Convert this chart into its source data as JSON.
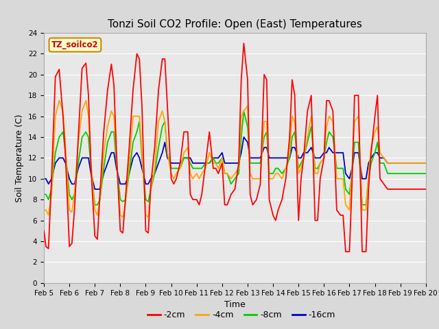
{
  "title": "Tonzi Soil CO2 Profile: Open (East) Temperatures",
  "xlabel": "Time",
  "ylabel": "Soil Temperature (C)",
  "legend_label": "TZ_soilco2",
  "ylim": [
    0,
    24
  ],
  "yticks": [
    0,
    2,
    4,
    6,
    8,
    10,
    12,
    14,
    16,
    18,
    20,
    22,
    24
  ],
  "xtick_labels": [
    "Feb 5",
    "Feb 6",
    "Feb 7",
    "Feb 8",
    "Feb 9",
    "Feb 10",
    "Feb 11",
    "Feb 12",
    "Feb 13",
    "Feb 14",
    "Feb 15",
    "Feb 16",
    "Feb 17",
    "Feb 18",
    "Feb 19",
    "Feb 20"
  ],
  "series": {
    "-2cm": {
      "color": "#ff0000"
    },
    "-4cm": {
      "color": "#ffa500"
    },
    "-8cm": {
      "color": "#00cc00"
    },
    "-16cm": {
      "color": "#0000cc"
    }
  },
  "background_color": "#d9d9d9",
  "plot_bg": "#e8e8e8",
  "title_fontsize": 11,
  "axis_label_fontsize": 9,
  "tick_fontsize": 7.5,
  "legend_fontsize": 9,
  "line_width": 1.3,
  "x_2cm": [
    0,
    0.08,
    0.18,
    0.3,
    0.45,
    0.6,
    0.75,
    0.85,
    1.0,
    1.1,
    1.2,
    1.35,
    1.5,
    1.65,
    1.75,
    1.85,
    2.0,
    2.1,
    2.2,
    2.35,
    2.5,
    2.65,
    2.75,
    2.85,
    3.0,
    3.1,
    3.2,
    3.35,
    3.5,
    3.65,
    3.75,
    3.85,
    4.0,
    4.1,
    4.2,
    4.35,
    4.5,
    4.65,
    4.75,
    4.85,
    5.0,
    5.1,
    5.2,
    5.35,
    5.5,
    5.65,
    5.75,
    5.85,
    6.0,
    6.1,
    6.2,
    6.35,
    6.5,
    6.65,
    6.75,
    6.85,
    7.0,
    7.1,
    7.2,
    7.35,
    7.5,
    7.65,
    7.75,
    7.85,
    8.0,
    8.1,
    8.2,
    8.35,
    8.5,
    8.65,
    8.75,
    8.85,
    9.0,
    9.1,
    9.2,
    9.35,
    9.5,
    9.65,
    9.75,
    9.85,
    10.0,
    10.1,
    10.2,
    10.35,
    10.5,
    10.65,
    10.75,
    10.85,
    11.0,
    11.1,
    11.2,
    11.35,
    11.5,
    11.65,
    11.75,
    11.85,
    12.0,
    12.1,
    12.2,
    12.35,
    12.5,
    12.65,
    12.75,
    12.85,
    13.0,
    13.1,
    13.2,
    13.35,
    13.5,
    13.65,
    13.75,
    13.85,
    14.0,
    14.1,
    14.2,
    14.35,
    14.5,
    14.65,
    14.75,
    14.85,
    15.0
  ],
  "y_2cm": [
    5.0,
    3.5,
    3.3,
    10.0,
    19.8,
    20.5,
    16.0,
    12.0,
    3.5,
    3.8,
    7.0,
    14.0,
    20.6,
    21.1,
    18.0,
    11.0,
    4.5,
    4.2,
    8.5,
    14.5,
    18.5,
    21.0,
    19.0,
    12.5,
    5.0,
    4.8,
    8.0,
    13.0,
    18.5,
    22.0,
    21.5,
    17.0,
    5.0,
    4.8,
    9.5,
    13.0,
    18.5,
    21.5,
    21.5,
    17.0,
    10.0,
    9.5,
    10.0,
    11.5,
    14.5,
    14.5,
    8.5,
    8.0,
    8.0,
    7.5,
    8.5,
    11.5,
    14.5,
    11.0,
    11.0,
    10.5,
    11.5,
    7.5,
    7.5,
    8.5,
    9.0,
    11.5,
    19.5,
    23.0,
    19.5,
    8.5,
    7.5,
    8.0,
    9.5,
    20.0,
    19.5,
    8.0,
    6.5,
    6.0,
    7.0,
    8.0,
    10.0,
    14.0,
    19.5,
    18.0,
    6.0,
    10.0,
    12.0,
    16.5,
    18.0,
    6.0,
    6.0,
    10.0,
    12.0,
    17.5,
    17.5,
    16.5,
    7.0,
    6.5,
    6.5,
    3.0,
    3.0,
    9.5,
    18.0,
    18.0,
    3.0,
    3.0,
    9.0,
    12.5,
    16.0,
    18.0,
    10.0,
    9.5,
    9.0,
    9.0,
    9.0,
    9.0,
    9.0,
    9.0,
    9.0,
    9.0,
    9.0,
    9.0,
    9.0,
    9.0,
    9.0
  ],
  "x_4cm": [
    0,
    0.08,
    0.18,
    0.3,
    0.45,
    0.6,
    0.75,
    0.85,
    1.0,
    1.1,
    1.2,
    1.35,
    1.5,
    1.65,
    1.75,
    1.85,
    2.0,
    2.1,
    2.2,
    2.35,
    2.5,
    2.65,
    2.75,
    2.85,
    3.0,
    3.1,
    3.2,
    3.35,
    3.5,
    3.65,
    3.75,
    3.85,
    4.0,
    4.1,
    4.2,
    4.35,
    4.5,
    4.65,
    4.75,
    4.85,
    5.0,
    5.1,
    5.2,
    5.35,
    5.5,
    5.65,
    5.75,
    5.85,
    6.0,
    6.1,
    6.2,
    6.35,
    6.5,
    6.65,
    6.75,
    6.85,
    7.0,
    7.1,
    7.2,
    7.35,
    7.5,
    7.65,
    7.75,
    7.85,
    8.0,
    8.1,
    8.2,
    8.35,
    8.5,
    8.65,
    8.75,
    8.85,
    9.0,
    9.1,
    9.2,
    9.35,
    9.5,
    9.65,
    9.75,
    9.85,
    10.0,
    10.1,
    10.2,
    10.35,
    10.5,
    10.65,
    10.75,
    10.85,
    11.0,
    11.1,
    11.2,
    11.35,
    11.5,
    11.65,
    11.75,
    11.85,
    12.0,
    12.1,
    12.2,
    12.35,
    12.5,
    12.65,
    12.75,
    12.85,
    13.0,
    13.1,
    13.2,
    13.35,
    13.5,
    13.65,
    13.75,
    13.85,
    14.0,
    14.1,
    14.2,
    14.35,
    14.5,
    14.65,
    14.75,
    14.85,
    15.0
  ],
  "y_4cm": [
    7.0,
    7.0,
    6.5,
    8.5,
    16.0,
    17.5,
    16.5,
    13.0,
    7.0,
    6.8,
    8.5,
    13.5,
    16.5,
    17.5,
    16.0,
    11.5,
    7.0,
    6.5,
    8.0,
    12.5,
    15.0,
    16.5,
    16.0,
    12.0,
    6.5,
    6.3,
    7.5,
    11.5,
    16.0,
    16.0,
    16.0,
    12.5,
    6.5,
    6.3,
    9.0,
    11.0,
    15.5,
    16.5,
    15.5,
    12.5,
    10.5,
    10.0,
    10.5,
    11.0,
    12.5,
    13.0,
    10.5,
    10.0,
    10.5,
    10.0,
    10.5,
    11.0,
    12.5,
    11.5,
    11.5,
    11.0,
    12.0,
    10.5,
    10.5,
    10.0,
    10.5,
    11.0,
    16.0,
    16.5,
    17.0,
    10.5,
    10.0,
    10.0,
    10.0,
    15.5,
    15.5,
    10.0,
    10.0,
    10.5,
    10.5,
    10.0,
    11.0,
    12.5,
    16.0,
    15.5,
    10.5,
    11.0,
    12.0,
    14.0,
    16.0,
    10.5,
    10.5,
    11.5,
    12.0,
    15.0,
    16.0,
    15.5,
    10.0,
    10.0,
    10.0,
    7.5,
    7.0,
    11.0,
    15.5,
    16.0,
    7.0,
    7.0,
    10.5,
    13.0,
    14.5,
    15.0,
    12.5,
    12.0,
    11.5,
    11.5,
    11.5,
    11.5,
    11.5,
    11.5,
    11.5,
    11.5,
    11.5,
    11.5,
    11.5,
    11.5,
    11.5
  ],
  "x_8cm": [
    0,
    0.08,
    0.18,
    0.3,
    0.45,
    0.6,
    0.75,
    0.85,
    1.0,
    1.1,
    1.2,
    1.35,
    1.5,
    1.65,
    1.75,
    1.85,
    2.0,
    2.1,
    2.2,
    2.35,
    2.5,
    2.65,
    2.75,
    2.85,
    3.0,
    3.1,
    3.2,
    3.35,
    3.5,
    3.65,
    3.75,
    3.85,
    4.0,
    4.1,
    4.2,
    4.35,
    4.5,
    4.65,
    4.75,
    4.85,
    5.0,
    5.1,
    5.2,
    5.35,
    5.5,
    5.65,
    5.75,
    5.85,
    6.0,
    6.1,
    6.2,
    6.35,
    6.5,
    6.65,
    6.75,
    6.85,
    7.0,
    7.1,
    7.2,
    7.35,
    7.5,
    7.65,
    7.75,
    7.85,
    8.0,
    8.1,
    8.2,
    8.35,
    8.5,
    8.65,
    8.75,
    8.85,
    9.0,
    9.1,
    9.2,
    9.35,
    9.5,
    9.65,
    9.75,
    9.85,
    10.0,
    10.1,
    10.2,
    10.35,
    10.5,
    10.65,
    10.75,
    10.85,
    11.0,
    11.1,
    11.2,
    11.35,
    11.5,
    11.65,
    11.75,
    11.85,
    12.0,
    12.1,
    12.2,
    12.35,
    12.5,
    12.65,
    12.75,
    12.85,
    13.0,
    13.1,
    13.2,
    13.35,
    13.5,
    13.65,
    13.75,
    13.85,
    14.0,
    14.1,
    14.2,
    14.35,
    14.5,
    14.65,
    14.75,
    14.85,
    15.0
  ],
  "y_8cm": [
    8.5,
    8.5,
    8.0,
    9.0,
    12.5,
    14.0,
    14.5,
    12.5,
    8.5,
    8.0,
    8.5,
    11.5,
    14.0,
    14.5,
    14.0,
    11.0,
    7.5,
    7.5,
    8.0,
    11.0,
    13.5,
    14.5,
    14.5,
    11.5,
    8.0,
    7.8,
    8.0,
    10.5,
    13.5,
    14.5,
    15.5,
    12.0,
    8.0,
    7.8,
    9.0,
    10.5,
    13.0,
    15.0,
    15.5,
    12.5,
    11.0,
    11.0,
    11.0,
    11.0,
    12.0,
    12.0,
    11.5,
    11.0,
    11.0,
    11.0,
    11.0,
    11.5,
    11.5,
    12.0,
    11.5,
    11.5,
    12.0,
    10.5,
    10.5,
    9.5,
    10.0,
    10.5,
    14.0,
    16.5,
    15.0,
    11.5,
    11.5,
    11.5,
    11.5,
    14.0,
    14.5,
    10.5,
    10.5,
    11.0,
    11.0,
    10.5,
    11.0,
    12.0,
    14.0,
    14.5,
    11.0,
    11.5,
    12.0,
    13.5,
    15.0,
    11.0,
    11.0,
    11.5,
    12.0,
    13.5,
    14.5,
    14.0,
    11.0,
    11.0,
    11.0,
    9.0,
    8.5,
    10.5,
    13.5,
    13.5,
    7.5,
    7.5,
    10.0,
    11.5,
    12.5,
    13.5,
    11.5,
    11.5,
    10.5,
    10.5,
    10.5,
    10.5,
    10.5,
    10.5,
    10.5,
    10.5,
    10.5,
    10.5,
    10.5,
    10.5,
    10.5
  ],
  "x_16cm": [
    0,
    0.08,
    0.18,
    0.3,
    0.45,
    0.6,
    0.75,
    0.85,
    1.0,
    1.1,
    1.2,
    1.35,
    1.5,
    1.65,
    1.75,
    1.85,
    2.0,
    2.1,
    2.2,
    2.35,
    2.5,
    2.65,
    2.75,
    2.85,
    3.0,
    3.1,
    3.2,
    3.35,
    3.5,
    3.65,
    3.75,
    3.85,
    4.0,
    4.1,
    4.2,
    4.35,
    4.5,
    4.65,
    4.75,
    4.85,
    5.0,
    5.1,
    5.2,
    5.35,
    5.5,
    5.65,
    5.75,
    5.85,
    6.0,
    6.1,
    6.2,
    6.35,
    6.5,
    6.65,
    6.75,
    6.85,
    7.0,
    7.1,
    7.2,
    7.35,
    7.5,
    7.65,
    7.75,
    7.85,
    8.0,
    8.1,
    8.2,
    8.35,
    8.5,
    8.65,
    8.75,
    8.85,
    9.0,
    9.1,
    9.2,
    9.35,
    9.5,
    9.65,
    9.75,
    9.85,
    10.0,
    10.1,
    10.2,
    10.35,
    10.5,
    10.65,
    10.75,
    10.85,
    11.0,
    11.1,
    11.2,
    11.35,
    11.5,
    11.65,
    11.75,
    11.85,
    12.0,
    12.1,
    12.2,
    12.35,
    12.5,
    12.65,
    12.75,
    12.85,
    13.0,
    13.1,
    13.2,
    13.35,
    13.5,
    13.65,
    13.75,
    13.85,
    14.0,
    14.1,
    14.2,
    14.35,
    14.5,
    14.65,
    14.75,
    14.85,
    15.0
  ],
  "y_16cm": [
    10.0,
    10.0,
    9.5,
    10.0,
    11.5,
    12.0,
    12.0,
    11.5,
    10.0,
    9.5,
    9.5,
    11.0,
    12.0,
    12.0,
    12.0,
    10.5,
    9.0,
    9.0,
    9.0,
    10.5,
    11.5,
    12.5,
    12.5,
    11.0,
    9.5,
    9.5,
    9.5,
    10.5,
    12.0,
    12.5,
    12.0,
    11.0,
    9.5,
    9.5,
    10.0,
    10.5,
    11.5,
    12.5,
    13.5,
    12.0,
    11.5,
    11.5,
    11.5,
    11.5,
    12.0,
    12.0,
    12.0,
    11.5,
    11.5,
    11.5,
    11.5,
    11.5,
    11.5,
    12.0,
    12.0,
    12.0,
    12.5,
    11.5,
    11.5,
    11.5,
    11.5,
    11.5,
    12.5,
    14.0,
    13.5,
    12.0,
    12.0,
    12.0,
    12.0,
    13.0,
    13.0,
    12.0,
    12.0,
    12.0,
    12.0,
    12.0,
    12.0,
    12.0,
    13.0,
    13.0,
    12.0,
    12.0,
    12.5,
    12.5,
    13.0,
    12.0,
    12.0,
    12.0,
    12.5,
    12.5,
    13.0,
    12.5,
    12.5,
    12.5,
    12.5,
    10.5,
    10.0,
    11.0,
    12.5,
    12.5,
    10.0,
    10.0,
    11.5,
    12.0,
    12.5,
    12.5,
    12.0,
    12.0,
    11.5,
    11.5,
    11.5,
    11.5,
    11.5,
    11.5,
    11.5,
    11.5,
    11.5,
    11.5,
    11.5,
    11.5,
    11.5
  ]
}
